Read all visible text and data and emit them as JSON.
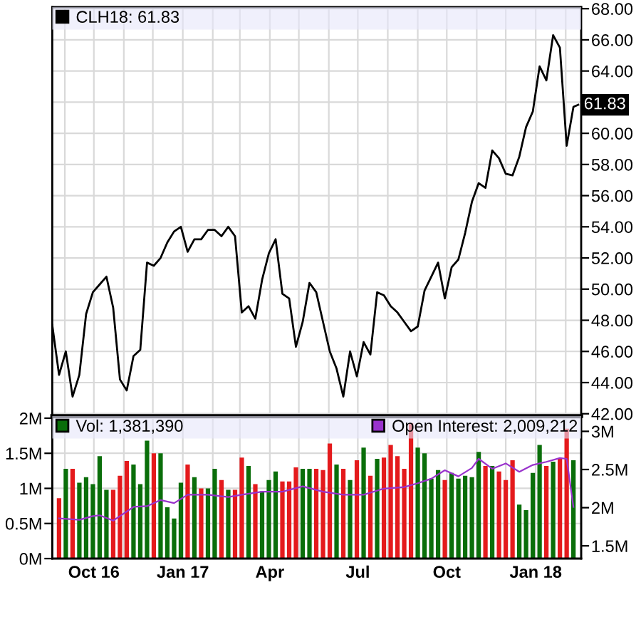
{
  "chart_data": [
    {
      "type": "line",
      "legend": "top",
      "grid": true,
      "tick_labels": "y",
      "marker": "none",
      "line_style": "solid",
      "x": [
        "2016-08-19",
        "2016-08-26",
        "2016-09-02",
        "2016-09-09",
        "2016-09-16",
        "2016-09-23",
        "2016-09-30",
        "2016-10-07",
        "2016-10-14",
        "2016-10-21",
        "2016-10-28",
        "2016-11-04",
        "2016-11-11",
        "2016-11-18",
        "2016-11-25",
        "2016-12-02",
        "2016-12-09",
        "2016-12-16",
        "2016-12-23",
        "2016-12-30",
        "2017-01-06",
        "2017-01-13",
        "2017-01-20",
        "2017-01-27",
        "2017-02-03",
        "2017-02-10",
        "2017-02-17",
        "2017-02-24",
        "2017-03-03",
        "2017-03-10",
        "2017-03-17",
        "2017-03-24",
        "2017-03-31",
        "2017-04-07",
        "2017-04-14",
        "2017-04-21",
        "2017-04-28",
        "2017-05-05",
        "2017-05-12",
        "2017-05-19",
        "2017-05-26",
        "2017-06-02",
        "2017-06-09",
        "2017-06-16",
        "2017-06-23",
        "2017-06-30",
        "2017-07-07",
        "2017-07-14",
        "2017-07-21",
        "2017-07-28",
        "2017-08-04",
        "2017-08-11",
        "2017-08-18",
        "2017-08-25",
        "2017-09-01",
        "2017-09-08",
        "2017-09-15",
        "2017-09-22",
        "2017-09-29",
        "2017-10-06",
        "2017-10-13",
        "2017-10-20",
        "2017-10-27",
        "2017-11-03",
        "2017-11-10",
        "2017-11-17",
        "2017-11-24",
        "2017-12-01",
        "2017-12-08",
        "2017-12-15",
        "2017-12-22",
        "2017-12-29",
        "2018-01-05",
        "2018-01-12",
        "2018-01-19",
        "2018-01-26",
        "2018-02-02",
        "2018-02-09",
        "2018-02-14"
      ],
      "series": [
        {
          "name": "CLH18: 61.83",
          "color": "#000000",
          "values": [
            47.7,
            44.5,
            46.0,
            43.1,
            44.5,
            48.4,
            49.8,
            50.3,
            50.8,
            48.8,
            44.2,
            43.5,
            45.7,
            46.1,
            51.7,
            51.5,
            52.0,
            53.0,
            53.7,
            54.0,
            52.4,
            53.2,
            53.2,
            53.8,
            53.8,
            53.4,
            54.0,
            53.4,
            48.5,
            48.9,
            48.1,
            50.6,
            52.3,
            53.2,
            49.7,
            49.4,
            46.3,
            47.9,
            50.4,
            49.8,
            47.9,
            46.0,
            44.9,
            43.1,
            46.0,
            44.4,
            46.6,
            45.8,
            49.8,
            49.6,
            48.9,
            48.5,
            47.9,
            47.3,
            47.6,
            49.9,
            50.8,
            51.7,
            49.4,
            51.4,
            51.9,
            53.6,
            55.6,
            56.8,
            56.5,
            58.9,
            58.4,
            57.4,
            57.3,
            58.5,
            60.4,
            61.4,
            64.3,
            63.4,
            66.3,
            65.5,
            59.2,
            61.7,
            61.83
          ]
        }
      ],
      "xlim": [
        "2016-08-19",
        "2018-02-17"
      ],
      "xticks": [
        {
          "value": "2016-09-01",
          "label": null
        },
        {
          "value": "2016-10-01",
          "label": null
        },
        {
          "value": "2016-11-01",
          "label": null
        },
        {
          "value": "2016-12-01",
          "label": null
        },
        {
          "value": "2017-01-01",
          "label": null
        },
        {
          "value": "2017-02-01",
          "label": null
        },
        {
          "value": "2017-03-01",
          "label": null
        },
        {
          "value": "2017-04-01",
          "label": null
        },
        {
          "value": "2017-05-01",
          "label": null
        },
        {
          "value": "2017-06-01",
          "label": null
        },
        {
          "value": "2017-07-01",
          "label": null
        },
        {
          "value": "2017-08-01",
          "label": null
        },
        {
          "value": "2017-09-01",
          "label": null
        },
        {
          "value": "2017-10-01",
          "label": null
        },
        {
          "value": "2017-11-01",
          "label": null
        },
        {
          "value": "2017-12-01",
          "label": null
        },
        {
          "value": "2018-01-01",
          "label": null
        },
        {
          "value": "2018-02-01",
          "label": null
        }
      ],
      "ylim": [
        41.85,
        68.1
      ],
      "yticks": [
        {
          "value": 42,
          "label": "42.00"
        },
        {
          "value": 44,
          "label": "44.00"
        },
        {
          "value": 46,
          "label": "46.00"
        },
        {
          "value": 48,
          "label": "48.00"
        },
        {
          "value": 50,
          "label": "50.00"
        },
        {
          "value": 52,
          "label": "52.00"
        },
        {
          "value": 54,
          "label": "54.00"
        },
        {
          "value": 56,
          "label": "56.00"
        },
        {
          "value": 58,
          "label": "58.00"
        },
        {
          "value": 60,
          "label": "60.00"
        },
        {
          "value": 62,
          "label": null
        },
        {
          "value": 64,
          "label": "64.00"
        },
        {
          "value": 66,
          "label": "66.00"
        },
        {
          "value": 68,
          "label": "68.00"
        }
      ],
      "annotations": [
        {
          "text": "61.83",
          "x": "2018-02-14",
          "y": 61.83
        }
      ]
    },
    {
      "type": "bar",
      "legend": "top",
      "grid": true,
      "series": [
        {
          "name": "Vol: 1,381,390",
          "type": "bar",
          "color": "#0a6e0a",
          "x": [
            "2016-08-26",
            "2016-09-02",
            "2016-09-09",
            "2016-09-16",
            "2016-09-23",
            "2016-09-30",
            "2016-10-07",
            "2016-10-14",
            "2016-10-21",
            "2016-10-28",
            "2016-11-04",
            "2016-11-11",
            "2016-11-18",
            "2016-11-25",
            "2016-12-02",
            "2016-12-09",
            "2016-12-16",
            "2016-12-23",
            "2016-12-30",
            "2017-01-06",
            "2017-01-13",
            "2017-01-20",
            "2017-01-27",
            "2017-02-03",
            "2017-02-10",
            "2017-02-17",
            "2017-02-24",
            "2017-03-03",
            "2017-03-10",
            "2017-03-17",
            "2017-03-24",
            "2017-03-31",
            "2017-04-07",
            "2017-04-14",
            "2017-04-21",
            "2017-04-28",
            "2017-05-05",
            "2017-05-12",
            "2017-05-19",
            "2017-05-26",
            "2017-06-02",
            "2017-06-09",
            "2017-06-16",
            "2017-06-23",
            "2017-06-30",
            "2017-07-07",
            "2017-07-14",
            "2017-07-21",
            "2017-07-28",
            "2017-08-04",
            "2017-08-11",
            "2017-08-18",
            "2017-08-25",
            "2017-09-01",
            "2017-09-08",
            "2017-09-15",
            "2017-09-22",
            "2017-09-29",
            "2017-10-06",
            "2017-10-13",
            "2017-10-20",
            "2017-10-27",
            "2017-11-03",
            "2017-11-10",
            "2017-11-17",
            "2017-11-24",
            "2017-12-01",
            "2017-12-08",
            "2017-12-15",
            "2017-12-22",
            "2017-12-29",
            "2018-01-05",
            "2018-01-12",
            "2018-01-19",
            "2018-01-26",
            "2018-02-02",
            "2018-02-09"
          ],
          "values": [
            0.86,
            1.28,
            1.28,
            1.08,
            1.16,
            1.06,
            1.46,
            0.98,
            0.98,
            1.18,
            1.39,
            1.34,
            1.06,
            1.68,
            1.5,
            1.5,
            0.73,
            0.57,
            1.08,
            1.34,
            1.16,
            1.0,
            1.0,
            1.28,
            1.12,
            0.98,
            0.98,
            1.44,
            1.32,
            1.06,
            0.96,
            1.12,
            1.24,
            1.1,
            1.1,
            1.3,
            1.28,
            1.28,
            1.28,
            1.26,
            1.64,
            1.34,
            1.28,
            1.12,
            1.4,
            1.58,
            1.18,
            1.42,
            1.44,
            1.62,
            1.46,
            1.28,
            1.93,
            1.58,
            1.5,
            1.14,
            1.26,
            1.12,
            1.22,
            1.14,
            1.18,
            1.16,
            1.52,
            1.32,
            1.32,
            1.24,
            1.12,
            1.4,
            0.77,
            0.69,
            1.22,
            1.62,
            1.32,
            1.38,
            1.42,
            1.85,
            1.4
          ],
          "colors": [
            "#e41a1c",
            "#0a6e0a",
            "#e41a1c",
            "#0a6e0a",
            "#0a6e0a",
            "#0a6e0a",
            "#0a6e0a",
            "#0a6e0a",
            "#e41a1c",
            "#e41a1c",
            "#e41a1c",
            "#0a6e0a",
            "#0a6e0a",
            "#0a6e0a",
            "#e41a1c",
            "#0a6e0a",
            "#0a6e0a",
            "#0a6e0a",
            "#0a6e0a",
            "#e41a1c",
            "#0a6e0a",
            "#e41a1c",
            "#0a6e0a",
            "#0a6e0a",
            "#e41a1c",
            "#0a6e0a",
            "#e41a1c",
            "#e41a1c",
            "#0a6e0a",
            "#e41a1c",
            "#0a6e0a",
            "#0a6e0a",
            "#0a6e0a",
            "#e41a1c",
            "#e41a1c",
            "#e41a1c",
            "#0a6e0a",
            "#0a6e0a",
            "#e41a1c",
            "#e41a1c",
            "#e41a1c",
            "#0a6e0a",
            "#e41a1c",
            "#0a6e0a",
            "#e41a1c",
            "#0a6e0a",
            "#e41a1c",
            "#0a6e0a",
            "#e41a1c",
            "#e41a1c",
            "#e41a1c",
            "#e41a1c",
            "#e41a1c",
            "#0a6e0a",
            "#0a6e0a",
            "#0a6e0a",
            "#0a6e0a",
            "#e41a1c",
            "#0a6e0a",
            "#0a6e0a",
            "#0a6e0a",
            "#0a6e0a",
            "#0a6e0a",
            "#e41a1c",
            "#0a6e0a",
            "#e41a1c",
            "#e41a1c",
            "#e41a1c",
            "#0a6e0a",
            "#0a6e0a",
            "#0a6e0a",
            "#0a6e0a",
            "#e41a1c",
            "#0a6e0a",
            "#e41a1c",
            "#e41a1c",
            "#0a6e0a"
          ]
        },
        {
          "name": "Open Interest: 2,009,212",
          "type": "line",
          "axis": "y2",
          "color": "#9933cc",
          "x": [
            "2016-08-26",
            "2016-09-16",
            "2016-09-30",
            "2016-10-07",
            "2016-10-21",
            "2016-10-28",
            "2016-11-11",
            "2016-11-25",
            "2016-12-09",
            "2016-12-23",
            "2017-01-06",
            "2017-01-27",
            "2017-02-17",
            "2017-03-03",
            "2017-03-24",
            "2017-04-14",
            "2017-05-05",
            "2017-05-26",
            "2017-06-16",
            "2017-07-07",
            "2017-07-28",
            "2017-08-18",
            "2017-09-01",
            "2017-09-15",
            "2017-09-29",
            "2017-10-13",
            "2017-10-27",
            "2017-11-03",
            "2017-11-17",
            "2017-12-01",
            "2017-12-15",
            "2017-12-29",
            "2018-01-12",
            "2018-01-26",
            "2018-02-02",
            "2018-02-09"
          ],
          "values": [
            1.86,
            1.84,
            1.89,
            1.9,
            1.83,
            1.89,
            2.01,
            2.02,
            2.1,
            2.06,
            2.17,
            2.17,
            2.14,
            2.17,
            2.21,
            2.21,
            2.28,
            2.21,
            2.17,
            2.17,
            2.25,
            2.27,
            2.32,
            2.38,
            2.49,
            2.41,
            2.52,
            2.64,
            2.51,
            2.58,
            2.47,
            2.56,
            2.6,
            2.65,
            2.64,
            2.01
          ]
        }
      ],
      "xlim": [
        "2016-08-19",
        "2018-02-17"
      ],
      "xticks": [
        {
          "value": "2016-09-01",
          "label": null
        },
        {
          "value": "2016-10-01",
          "label": "Oct 16"
        },
        {
          "value": "2016-11-01",
          "label": null
        },
        {
          "value": "2016-12-01",
          "label": null
        },
        {
          "value": "2017-01-01",
          "label": "Jan 17"
        },
        {
          "value": "2017-02-01",
          "label": null
        },
        {
          "value": "2017-03-01",
          "label": null
        },
        {
          "value": "2017-04-01",
          "label": "Apr"
        },
        {
          "value": "2017-05-01",
          "label": null
        },
        {
          "value": "2017-06-01",
          "label": null
        },
        {
          "value": "2017-07-01",
          "label": "Jul"
        },
        {
          "value": "2017-08-01",
          "label": null
        },
        {
          "value": "2017-09-01",
          "label": null
        },
        {
          "value": "2017-10-01",
          "label": "Oct"
        },
        {
          "value": "2017-11-01",
          "label": null
        },
        {
          "value": "2017-12-01",
          "label": null
        },
        {
          "value": "2018-01-01",
          "label": "Jan 18"
        },
        {
          "value": "2018-02-01",
          "label": null
        }
      ],
      "ylim": [
        0,
        2.03
      ],
      "yticks": [
        {
          "value": 0,
          "label": "0M"
        },
        {
          "value": 0.5,
          "label": "0.5M"
        },
        {
          "value": 1,
          "label": "1M"
        },
        {
          "value": 1.5,
          "label": "1.5M"
        },
        {
          "value": 2,
          "label": "2M"
        }
      ],
      "y2lim": [
        1.333,
        3.2
      ],
      "y2ticks": [
        {
          "value": 1.5,
          "label": "1.5M"
        },
        {
          "value": 2,
          "label": "2M"
        },
        {
          "value": 2.5,
          "label": "2.5M"
        },
        {
          "value": 3,
          "label": "3M"
        }
      ]
    }
  ]
}
